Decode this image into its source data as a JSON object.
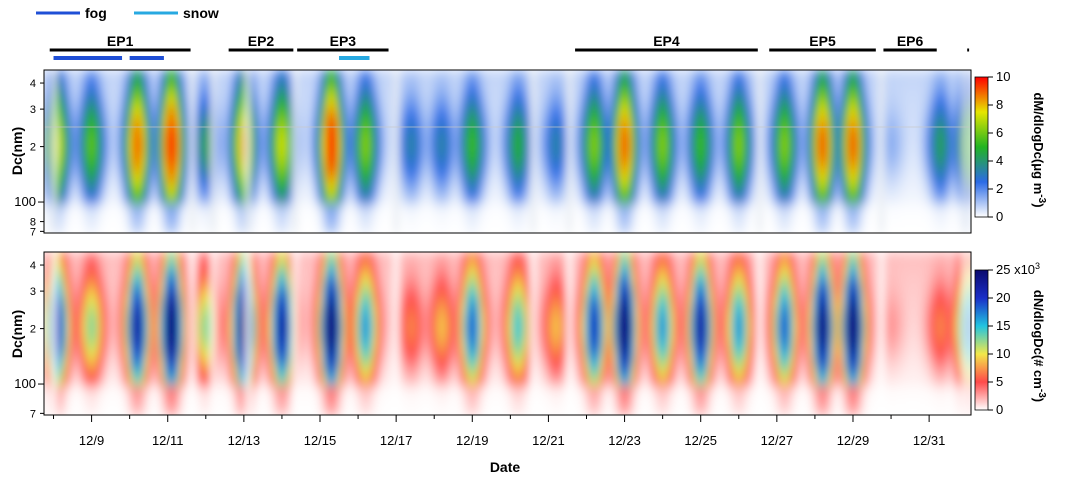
{
  "legend": [
    {
      "label": "fog",
      "color": "#1f4fd6"
    },
    {
      "label": "snow",
      "color": "#27a9e1"
    }
  ],
  "episodes": [
    {
      "label": "EP1",
      "start": 7.9,
      "end": 11.6
    },
    {
      "label": "EP2",
      "start": 12.6,
      "end": 14.3
    },
    {
      "label": "EP3",
      "start": 14.4,
      "end": 16.8
    },
    {
      "label": "EP4",
      "start": 21.7,
      "end": 26.5
    },
    {
      "label": "EP5",
      "start": 26.8,
      "end": 29.6
    },
    {
      "label": "EP6",
      "start": 29.8,
      "end": 31.2
    },
    {
      "label": "",
      "start": 32.0,
      "end": 32.05
    }
  ],
  "fog_bars": [
    {
      "start": 8.0,
      "end": 9.8
    },
    {
      "start": 10.0,
      "end": 10.9
    }
  ],
  "snow_bars": [
    {
      "start": 15.5,
      "end": 16.3
    }
  ],
  "chart_data": [
    {
      "type": "heatmap",
      "panel": "top",
      "ylabel": "Dc(nm)",
      "y_ticks": [
        "4",
        "3",
        "2",
        "100",
        "8",
        "7"
      ],
      "colorbar": {
        "title": "dM/dlogDc(μg m",
        "title_sup": "-3",
        "title_close": ")",
        "ticks": [
          0,
          2,
          4,
          6,
          8,
          10
        ],
        "range": [
          0,
          10
        ],
        "colors": [
          "#ffffff",
          "#2c6be6",
          "#22b422",
          "#e6e600",
          "#ff0000"
        ]
      },
      "mass_peaks": [
        {
          "x": 8.1,
          "v": 7
        },
        {
          "x": 9.0,
          "v": 5.5
        },
        {
          "x": 10.2,
          "v": 9
        },
        {
          "x": 11.1,
          "v": 10
        },
        {
          "x": 12.0,
          "v": 4
        },
        {
          "x": 13.0,
          "v": 8
        },
        {
          "x": 14.0,
          "v": 7
        },
        {
          "x": 15.3,
          "v": 10
        },
        {
          "x": 16.2,
          "v": 6
        },
        {
          "x": 17.4,
          "v": 3
        },
        {
          "x": 18.2,
          "v": 3
        },
        {
          "x": 19.0,
          "v": 5
        },
        {
          "x": 20.2,
          "v": 4.5
        },
        {
          "x": 21.2,
          "v": 3
        },
        {
          "x": 22.2,
          "v": 6
        },
        {
          "x": 23.0,
          "v": 9
        },
        {
          "x": 24.0,
          "v": 6
        },
        {
          "x": 25.0,
          "v": 5
        },
        {
          "x": 26.0,
          "v": 6
        },
        {
          "x": 27.2,
          "v": 6
        },
        {
          "x": 28.2,
          "v": 9
        },
        {
          "x": 29.0,
          "v": 9
        },
        {
          "x": 30.0,
          "v": 1
        },
        {
          "x": 31.3,
          "v": 4
        },
        {
          "x": 32.0,
          "v": 5
        }
      ]
    },
    {
      "type": "heatmap",
      "panel": "bottom",
      "xlabel": "Date",
      "ylabel": "Dc(nm)",
      "y_ticks": [
        "4",
        "3",
        "2",
        "100",
        "7"
      ],
      "x_ticks": [
        {
          "x": 9,
          "label": "12/9"
        },
        {
          "x": 11,
          "label": "12/11"
        },
        {
          "x": 13,
          "label": "12/13"
        },
        {
          "x": 15,
          "label": "12/15"
        },
        {
          "x": 17,
          "label": "12/17"
        },
        {
          "x": 19,
          "label": "12/19"
        },
        {
          "x": 21,
          "label": "12/21"
        },
        {
          "x": 23,
          "label": "12/23"
        },
        {
          "x": 25,
          "label": "12/25"
        },
        {
          "x": 27,
          "label": "12/27"
        },
        {
          "x": 29,
          "label": "12/29"
        },
        {
          "x": 31,
          "label": "12/31"
        }
      ],
      "x_range": [
        7.75,
        32.1
      ],
      "colorbar": {
        "title": "dN/dlogDc(# cm",
        "title_sup": "-3",
        "title_close": ")",
        "ticks": [
          0,
          5,
          10,
          15,
          20,
          25
        ],
        "top_label": "25 x10",
        "top_label_sup": "3",
        "range": [
          0,
          25
        ],
        "colors": [
          "#ffffff",
          "#ff4a4a",
          "#f2e84a",
          "#22c4e0",
          "#1a2ec8",
          "#0a0a6e"
        ]
      },
      "number_peaks": [
        {
          "x": 8.1,
          "v": 20
        },
        {
          "x": 9.0,
          "v": 12
        },
        {
          "x": 10.2,
          "v": 22
        },
        {
          "x": 11.1,
          "v": 25
        },
        {
          "x": 12.0,
          "v": 12
        },
        {
          "x": 13.0,
          "v": 24
        },
        {
          "x": 14.0,
          "v": 22
        },
        {
          "x": 15.3,
          "v": 25
        },
        {
          "x": 16.2,
          "v": 16
        },
        {
          "x": 17.4,
          "v": 6
        },
        {
          "x": 18.2,
          "v": 8
        },
        {
          "x": 19.0,
          "v": 18
        },
        {
          "x": 20.2,
          "v": 14
        },
        {
          "x": 21.2,
          "v": 8
        },
        {
          "x": 22.2,
          "v": 20
        },
        {
          "x": 23.0,
          "v": 25
        },
        {
          "x": 24.0,
          "v": 16
        },
        {
          "x": 25.0,
          "v": 22
        },
        {
          "x": 26.0,
          "v": 16
        },
        {
          "x": 27.2,
          "v": 18
        },
        {
          "x": 28.2,
          "v": 24
        },
        {
          "x": 29.0,
          "v": 25
        },
        {
          "x": 30.0,
          "v": 2
        },
        {
          "x": 31.3,
          "v": 6
        },
        {
          "x": 32.0,
          "v": 16
        }
      ]
    }
  ]
}
